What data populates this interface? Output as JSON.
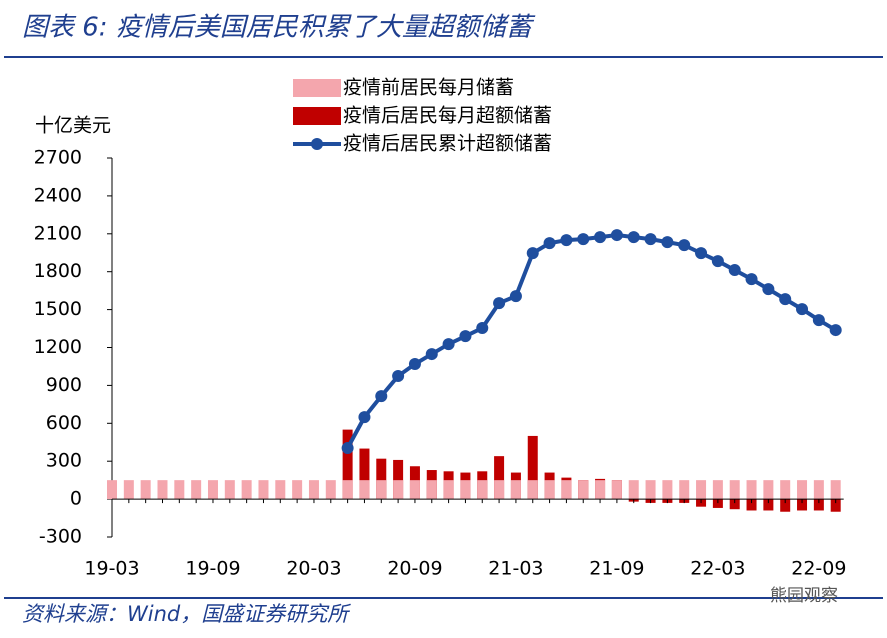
{
  "header": {
    "title": "图表 6: 疫情后美国居民积累了大量超额储蓄"
  },
  "footer": {
    "source": "资料来源：Wind，国盛证券研究所",
    "watermark": "熊园观察"
  },
  "chart_data": {
    "type": "bar-line",
    "y_axis_label": "十亿美元",
    "categories": [
      "19-03",
      null,
      null,
      null,
      null,
      null,
      "19-09",
      null,
      null,
      null,
      null,
      null,
      "20-03",
      null,
      null,
      null,
      null,
      null,
      "20-09",
      null,
      null,
      null,
      null,
      null,
      "21-03",
      null,
      null,
      null,
      null,
      null,
      "21-09",
      null,
      null,
      null,
      null,
      null,
      "22-03",
      null,
      null,
      null,
      null,
      null,
      "22-09",
      null
    ],
    "ylim": [
      -300,
      2700
    ],
    "yticks": [
      -300,
      0,
      300,
      600,
      900,
      1200,
      1500,
      1800,
      2100,
      2400,
      2700
    ],
    "series": [
      {
        "name": "疫情前居民每月储蓄",
        "kind": "bar",
        "color": "#f4a6ad",
        "values": [
          150,
          150,
          150,
          150,
          150,
          150,
          150,
          150,
          150,
          150,
          150,
          150,
          150,
          150,
          150,
          150,
          150,
          150,
          150,
          150,
          150,
          150,
          150,
          150,
          150,
          150,
          150,
          150,
          150,
          150,
          150,
          150,
          150,
          150,
          150,
          150,
          150,
          150,
          150,
          150,
          150,
          150,
          150,
          150
        ]
      },
      {
        "name": "疫情后居民每月超额储蓄",
        "kind": "bar",
        "color": "#c00000",
        "values": [
          null,
          null,
          null,
          null,
          null,
          null,
          null,
          null,
          null,
          null,
          null,
          null,
          null,
          null,
          550,
          400,
          320,
          310,
          260,
          230,
          220,
          210,
          220,
          340,
          210,
          500,
          210,
          170,
          150,
          160,
          150,
          -20,
          -30,
          -30,
          -30,
          -60,
          -70,
          -80,
          -90,
          -90,
          -100,
          -90,
          -90,
          -100
        ]
      },
      {
        "name": "疫情后居民累计超额储蓄",
        "kind": "line",
        "color": "#1f4e9e",
        "values": [
          null,
          null,
          null,
          null,
          null,
          null,
          null,
          null,
          null,
          null,
          null,
          null,
          null,
          null,
          404,
          649,
          815,
          974,
          1069,
          1148,
          1227,
          1290,
          1354,
          1551,
          1607,
          1947,
          2026,
          2050,
          2058,
          2074,
          2090,
          2074,
          2058,
          2034,
          2010,
          1947,
          1884,
          1813,
          1741,
          1662,
          1583,
          1504,
          1417,
          1338
        ]
      }
    ]
  }
}
